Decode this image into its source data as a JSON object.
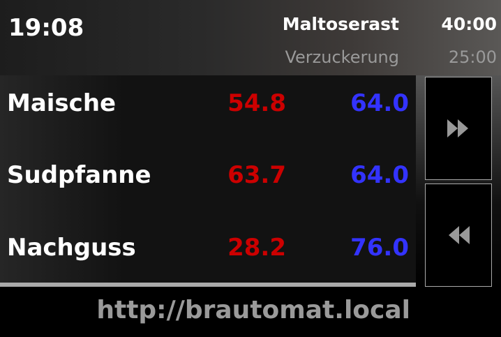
{
  "header": {
    "clock": "19:08",
    "current_step": "Maltoserast",
    "current_time": "40:00",
    "next_step": "Verzuckerung",
    "next_time": "25:00"
  },
  "rows": [
    {
      "label": "Maische",
      "actual": "54.8",
      "target": "64.0"
    },
    {
      "label": "Sudpfanne",
      "actual": "63.7",
      "target": "64.0"
    },
    {
      "label": "Nachguss",
      "actual": "28.2",
      "target": "76.0"
    }
  ],
  "colors": {
    "actual": "#cc0000",
    "target": "#3333ff"
  },
  "buttons": {
    "forward": "fast-forward-icon",
    "back": "rewind-icon"
  },
  "footer": {
    "url": "http://brautomat.local"
  }
}
